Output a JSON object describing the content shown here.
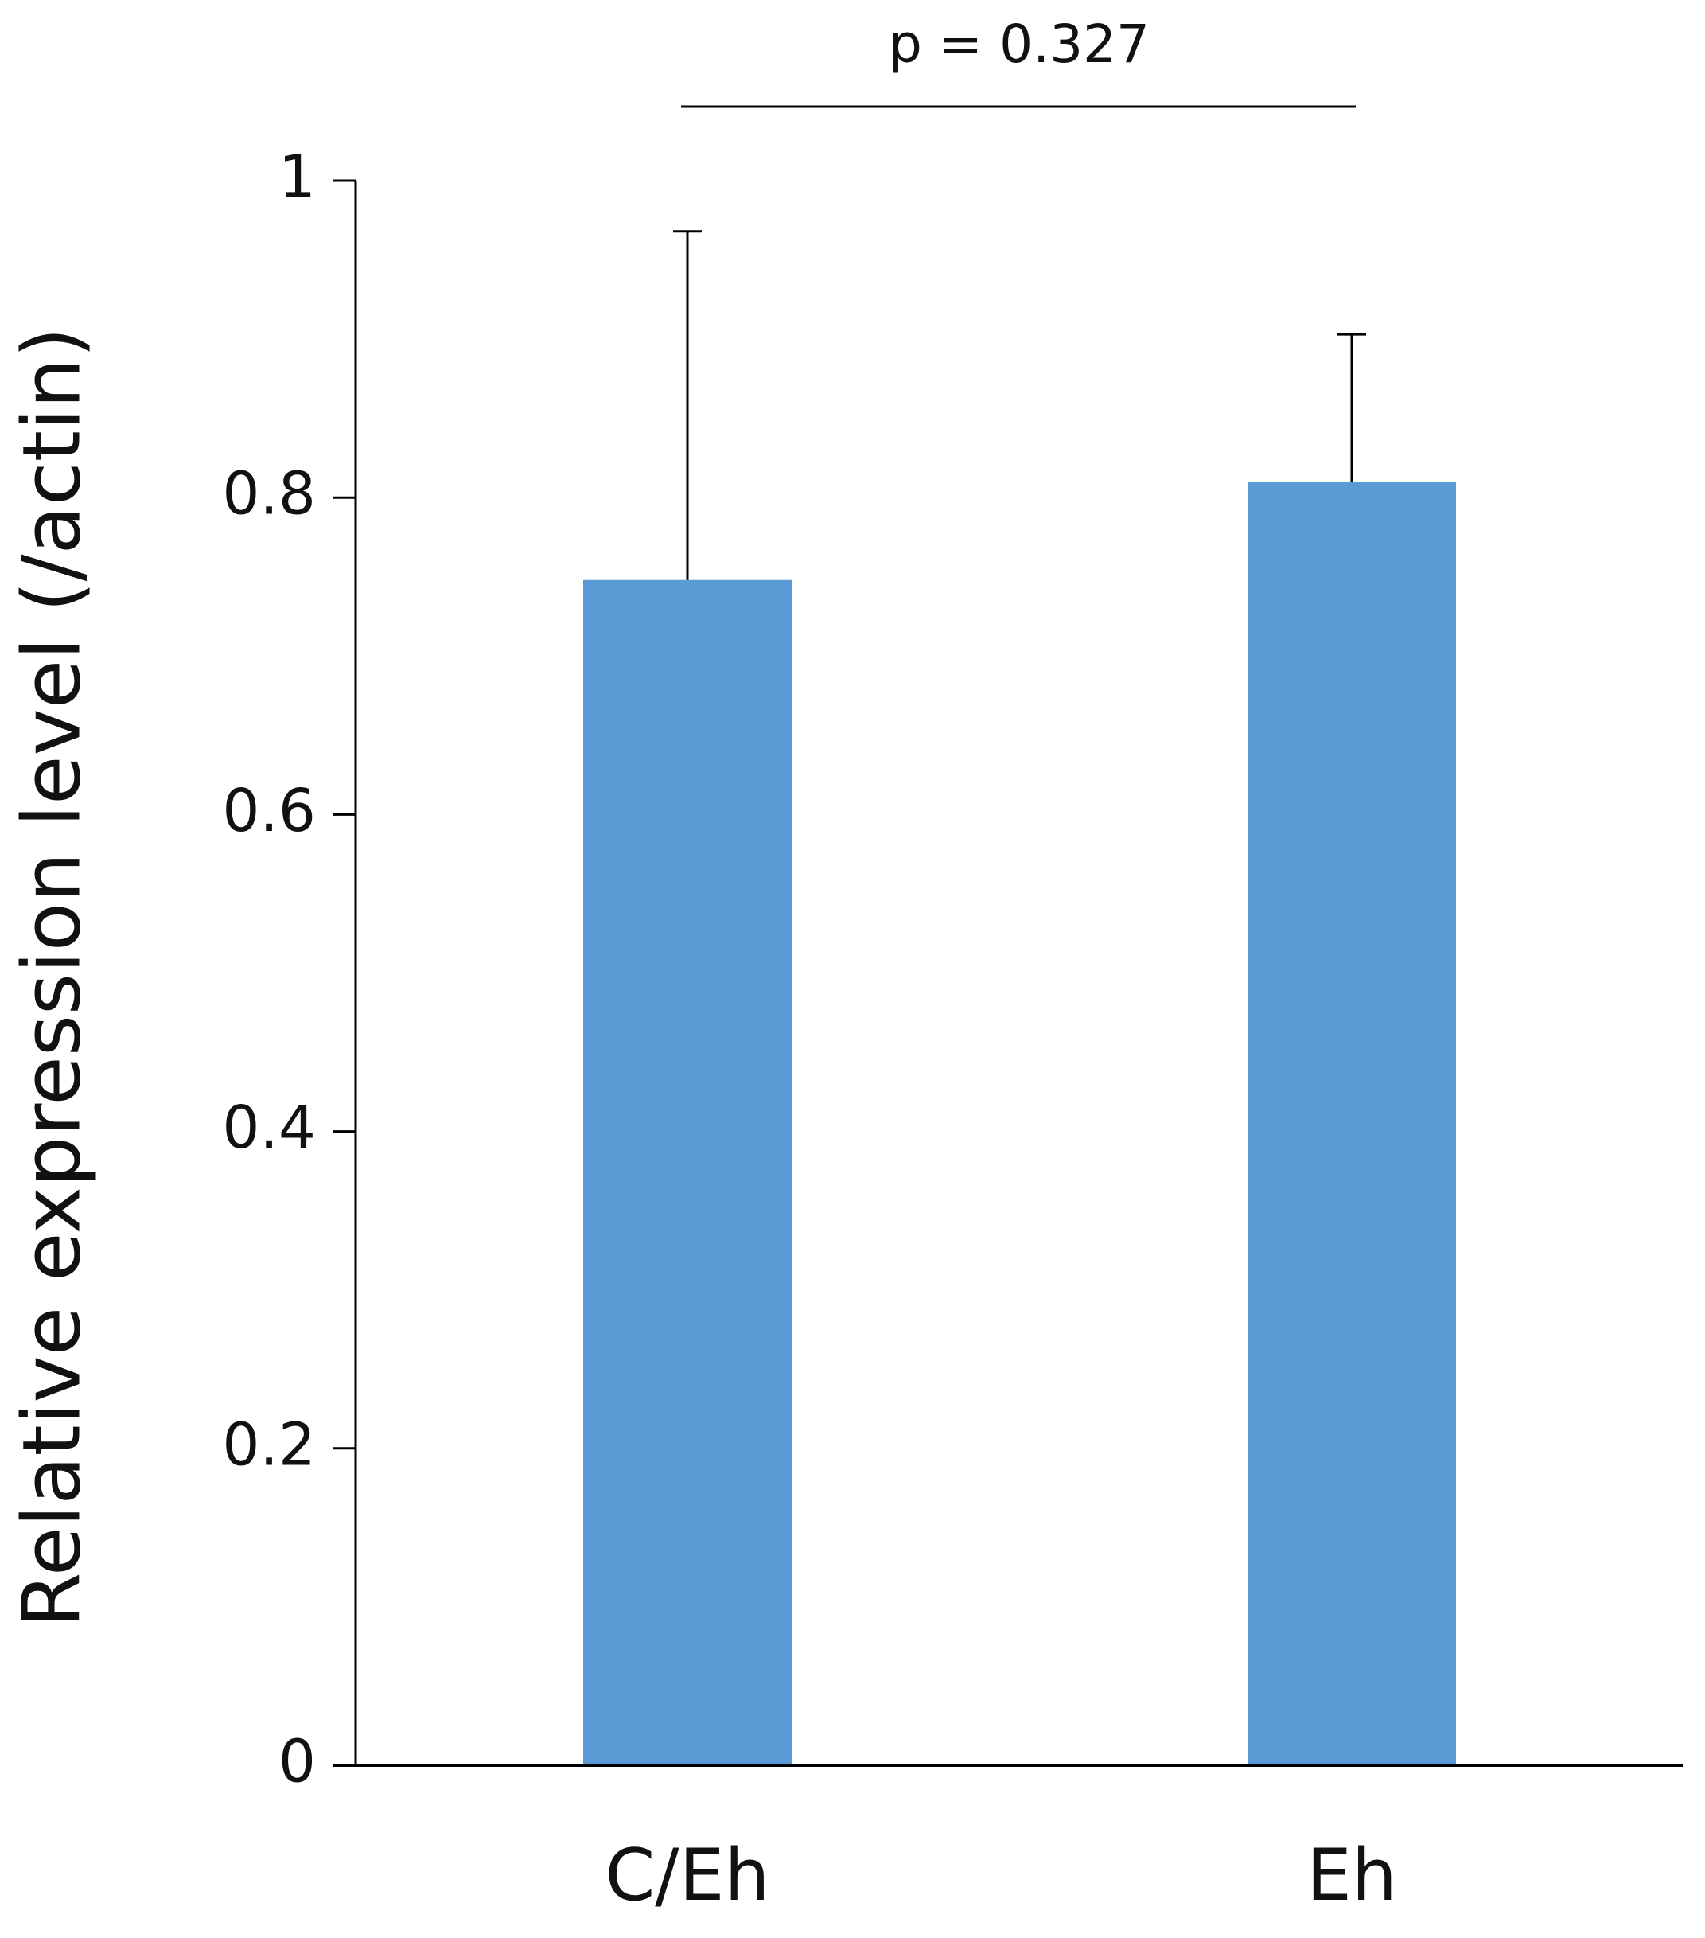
{
  "chart_data": {
    "type": "bar",
    "y_label": "Relative expression level (/actin)",
    "annotation": "p = 0.327",
    "categories": [
      "C/Eh",
      "Eh"
    ],
    "values": [
      0.748,
      0.81
    ],
    "errors": [
      0.22,
      0.093
    ],
    "color": "#5b9bd5",
    "ylim": [
      0,
      1
    ],
    "yticks": [
      0,
      0.2,
      0.4,
      0.6,
      0.8,
      1
    ],
    "grid": false
  }
}
